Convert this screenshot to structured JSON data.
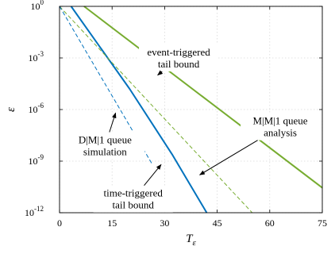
{
  "chart_data": {
    "type": "line",
    "xlabel": "T",
    "xlabel_sub": "ε",
    "ylabel": "ε",
    "xlim": [
      0,
      75
    ],
    "ylim_log10": [
      -12,
      0
    ],
    "y_scale": "log",
    "grid": true,
    "x_ticks": [
      "0",
      "15",
      "30",
      "45",
      "60",
      "75"
    ],
    "y_ticks": [
      {
        "base": "10",
        "exp": "0"
      },
      {
        "base": "10",
        "exp": "-3"
      },
      {
        "base": "10",
        "exp": "-6"
      },
      {
        "base": "10",
        "exp": "-9"
      },
      {
        "base": "10",
        "exp": "-12"
      }
    ],
    "series": [
      {
        "key": "event_bound",
        "color": "#77ac30",
        "style": "solid",
        "width": 2,
        "points": [
          [
            7.0,
            0
          ],
          [
            75,
            -10.55
          ]
        ]
      },
      {
        "key": "time_bound",
        "color": "#0072bd",
        "style": "solid",
        "width": 2,
        "points": [
          [
            3.3,
            0
          ],
          [
            20,
            -4.8
          ],
          [
            32.1,
            -8.6
          ],
          [
            42,
            -12
          ]
        ]
      },
      {
        "key": "mm1_analysis",
        "color": "#77ac30",
        "style": "dashed",
        "width": 1,
        "points": [
          [
            0,
            0
          ],
          [
            55,
            -12
          ]
        ]
      },
      {
        "key": "dm1_simulation",
        "color": "#0072bd",
        "style": "dashed",
        "width": 1,
        "points": [
          [
            0,
            0
          ],
          [
            26.5,
            -9.2
          ]
        ]
      }
    ],
    "annotations": [
      {
        "lines": [
          "event-triggered",
          "tail bound"
        ],
        "pos": [
          34,
          -3.0
        ],
        "arrow_to": [
          28,
          -4.0
        ]
      },
      {
        "lines": [
          "M|M|1 queue",
          "analysis"
        ],
        "pos": [
          63,
          -7.0
        ],
        "arrow_to": [
          40,
          -9.8
        ]
      },
      {
        "lines": [
          "D|M|1 queue",
          "simulation"
        ],
        "pos": [
          13,
          -8.1
        ],
        "arrow_to": [
          16,
          -6.2
        ]
      },
      {
        "lines": [
          "time-triggered",
          "tail bound"
        ],
        "pos": [
          21,
          -11.2
        ],
        "arrow_to": [
          29,
          -9.2
        ]
      }
    ]
  }
}
